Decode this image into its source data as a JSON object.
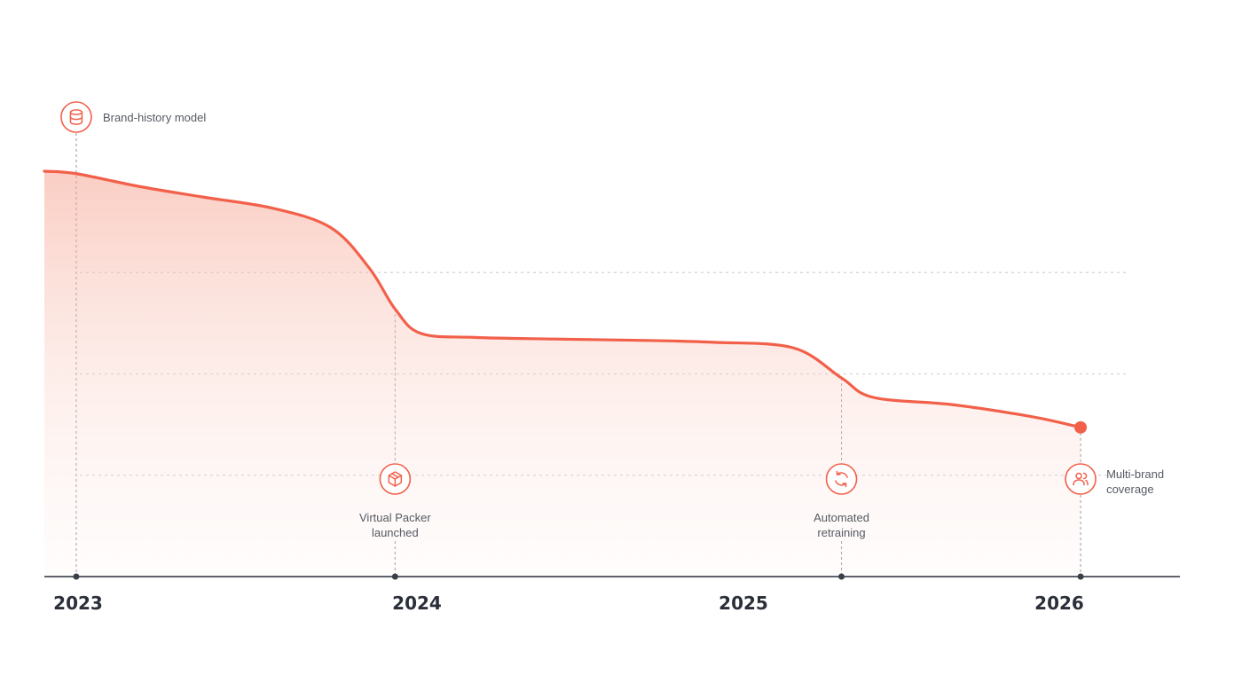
{
  "chart_data": {
    "type": "area",
    "title": "",
    "xlabel": "",
    "ylabel": "",
    "x_ticks": [
      {
        "label": "2023",
        "value": 2023.0
      },
      {
        "label": "2024",
        "value": 2024.0
      },
      {
        "label": "2025",
        "value": 2025.0
      },
      {
        "label": "2026",
        "value": 2026.0
      }
    ],
    "xlim": [
      2022.9,
      2026.3
    ],
    "ylim": [
      0,
      100
    ],
    "grid": {
      "horizontal": true,
      "style": "dotted"
    },
    "series": [
      {
        "color": "#f2604a",
        "points": [
          {
            "x": 2022.9,
            "y": 100
          },
          {
            "x": 2023.0,
            "y": 99.4
          },
          {
            "x": 2023.2,
            "y": 96.2
          },
          {
            "x": 2023.4,
            "y": 93.6
          },
          {
            "x": 2023.62,
            "y": 90.8
          },
          {
            "x": 2023.8,
            "y": 86.0
          },
          {
            "x": 2023.92,
            "y": 76.0
          },
          {
            "x": 2024.0,
            "y": 66.0
          },
          {
            "x": 2024.08,
            "y": 60.0
          },
          {
            "x": 2024.25,
            "y": 59.0
          },
          {
            "x": 2024.5,
            "y": 58.6
          },
          {
            "x": 2024.75,
            "y": 58.3
          },
          {
            "x": 2025.0,
            "y": 57.8
          },
          {
            "x": 2025.25,
            "y": 56.4
          },
          {
            "x": 2025.4,
            "y": 49.0
          },
          {
            "x": 2025.5,
            "y": 44.2
          },
          {
            "x": 2025.75,
            "y": 42.4
          },
          {
            "x": 2026.0,
            "y": 39.4
          },
          {
            "x": 2026.15,
            "y": 36.8
          }
        ]
      }
    ],
    "annotations": [
      {
        "x": 2023.0,
        "lines": [
          "Brand-history model"
        ],
        "icon": "database-icon",
        "placement": "top-right"
      },
      {
        "x": 2024.0,
        "lines": [
          "Virtual Packer",
          "launched"
        ],
        "icon": "box-icon",
        "placement": "below"
      },
      {
        "x": 2025.4,
        "lines": [
          "Automated",
          "retraining"
        ],
        "icon": "refresh-icon",
        "placement": "below"
      },
      {
        "x": 2026.15,
        "lines": [
          "Multi-brand",
          "coverage"
        ],
        "icon": "users-icon",
        "placement": "right"
      }
    ],
    "end_marker": true
  },
  "colors": {
    "accent": "#f2604a",
    "axis": "#2b2f3a",
    "grid": "#d2d4d8"
  }
}
